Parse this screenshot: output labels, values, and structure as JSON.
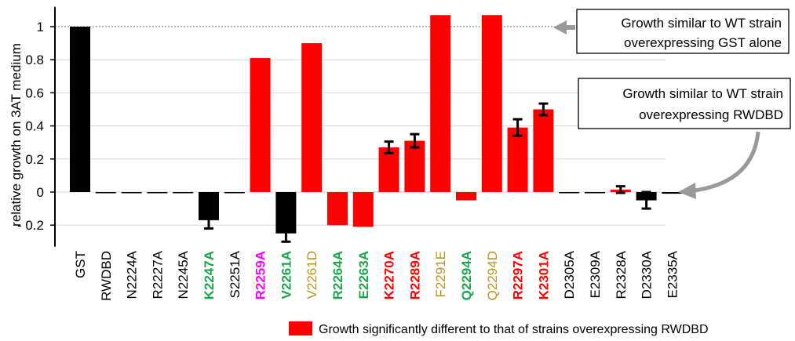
{
  "chart_data": {
    "type": "bar",
    "ylabel": "relative growth on 3AT medium",
    "ylim": [
      -0.33,
      1.12
    ],
    "yticks": [
      1,
      0.8,
      0.6,
      0.4,
      0.2,
      0,
      -0.2
    ],
    "ytick_labels": [
      "1",
      "0.8",
      "0.6",
      "0.4",
      "0.2",
      "0",
      "- 0.2"
    ],
    "grid": "horizontal",
    "reference_line_y": 1,
    "categories": [
      "GST",
      "RWDBD",
      "N2224A",
      "R2227A",
      "N2245A",
      "K2247A",
      "S2251A",
      "R2259A",
      "V2261A",
      "V2261D",
      "R2264A",
      "E2263A",
      "K2270A",
      "R2289A",
      "F2291E",
      "Q2294A",
      "Q2294D",
      "R2297A",
      "K2301A",
      "D2305A",
      "E2309A",
      "R2328A",
      "D2330A",
      "E2335A"
    ],
    "values": [
      1.0,
      0.0,
      0.0,
      0.0,
      0.0,
      -0.17,
      0.0,
      0.81,
      -0.25,
      0.9,
      -0.2,
      -0.21,
      0.27,
      0.31,
      1.07,
      -0.05,
      1.07,
      0.39,
      0.5,
      0.0,
      0.0,
      0.015,
      -0.05,
      -0.01
    ],
    "errors": [
      0,
      0,
      0,
      0,
      0,
      0.05,
      0,
      0,
      0.05,
      0,
      0,
      0,
      0.035,
      0.04,
      0,
      0,
      0,
      0.05,
      0.035,
      0,
      0,
      0.02,
      0.05,
      0
    ],
    "bar_colors": [
      "#000000",
      "#000000",
      "#000000",
      "#000000",
      "#000000",
      "#000000",
      "#000000",
      "#ff0000",
      "#000000",
      "#ff0000",
      "#ff0000",
      "#ff0000",
      "#ff0000",
      "#ff0000",
      "#ff0000",
      "#ff0000",
      "#ff0000",
      "#ff0000",
      "#ff0000",
      "#000000",
      "#000000",
      "#ff0000",
      "#000000",
      "#000000"
    ],
    "label_colors": [
      "#000000",
      "#000000",
      "#000000",
      "#000000",
      "#000000",
      "#1aa64a",
      "#000000",
      "#ff00ff",
      "#1aa64a",
      "#b8961e",
      "#1aa64a",
      "#1aa64a",
      "#ff0000",
      "#ff0000",
      "#b8961e",
      "#1aa64a",
      "#b8961e",
      "#ff0000",
      "#ff0000",
      "#000000",
      "#000000",
      "#000000",
      "#000000",
      "#000000"
    ],
    "label_bold": [
      false,
      false,
      false,
      false,
      false,
      true,
      false,
      true,
      true,
      false,
      true,
      true,
      true,
      true,
      false,
      true,
      false,
      true,
      true,
      false,
      false,
      false,
      false,
      false
    ],
    "annotations": [
      {
        "lines": [
          "Growth similar to WT strain",
          "overexpressing GST alone"
        ],
        "points_to": "y=1 line",
        "arrow": "gray left arrow"
      },
      {
        "lines": [
          "Growth similar to WT strain",
          "overexpressing RWDBD"
        ],
        "points_to": "y=0 axis",
        "arrow": "gray curved arrow"
      }
    ],
    "legend": {
      "color": "#ff0000",
      "label": "Growth significantly different to that of strains overexpressing RWDBD",
      "position": "bottom-right"
    }
  }
}
